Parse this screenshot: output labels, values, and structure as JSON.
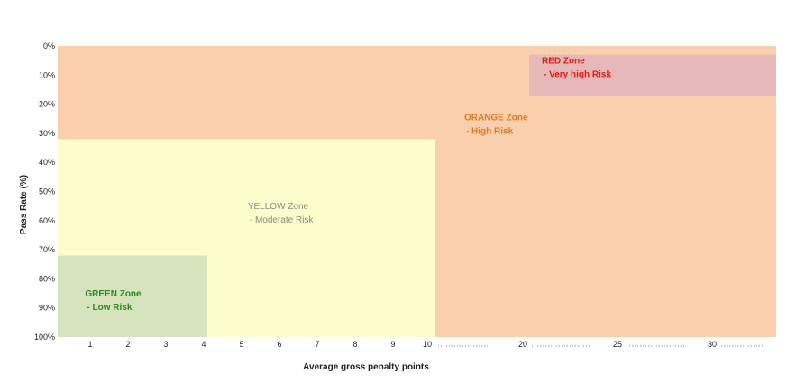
{
  "chart_data": {
    "type": "area",
    "xlabel": "Average gross penalty points",
    "ylabel": "Pass Rate (%)",
    "x_ticks": [
      "1",
      "2",
      "3",
      "4",
      "5",
      "6",
      "7",
      "8",
      "9",
      "10",
      "20",
      "25",
      "30"
    ],
    "y_ticks": [
      "0%",
      "10%",
      "20%",
      "30%",
      "40%",
      "50%",
      "60%",
      "70%",
      "80%",
      "90%",
      "100%"
    ],
    "y_inverted": true,
    "grid": false,
    "zones": [
      {
        "line1": "ORANGE Zone",
        "line2": "- High Risk",
        "color": "#f9cfae",
        "label_color": "#e3781f",
        "x_from": 0,
        "x_to": 33,
        "y_from": 0,
        "y_to": 100
      },
      {
        "line1": "YELLOW Zone",
        "line2": "- Moderate  Risk",
        "color": "#fcfccd",
        "label_color": "#8c8c82",
        "x_from": 0,
        "x_to": 10,
        "y_from": 32,
        "y_to": 100
      },
      {
        "line1": "GREEN Zone",
        "line2": "- Low Risk",
        "color": "#d7e3bc",
        "label_color": "#2a8a1e",
        "x_from": 0,
        "x_to": 4.1,
        "y_from": 72,
        "y_to": 100
      },
      {
        "line1": "RED Zone",
        "line2": "- Very high Risk",
        "color": "#e6b9b8",
        "label_color": "#e01b1b",
        "x_from": 20.1,
        "x_to": 33,
        "y_from": 3,
        "y_to": 17
      }
    ]
  }
}
